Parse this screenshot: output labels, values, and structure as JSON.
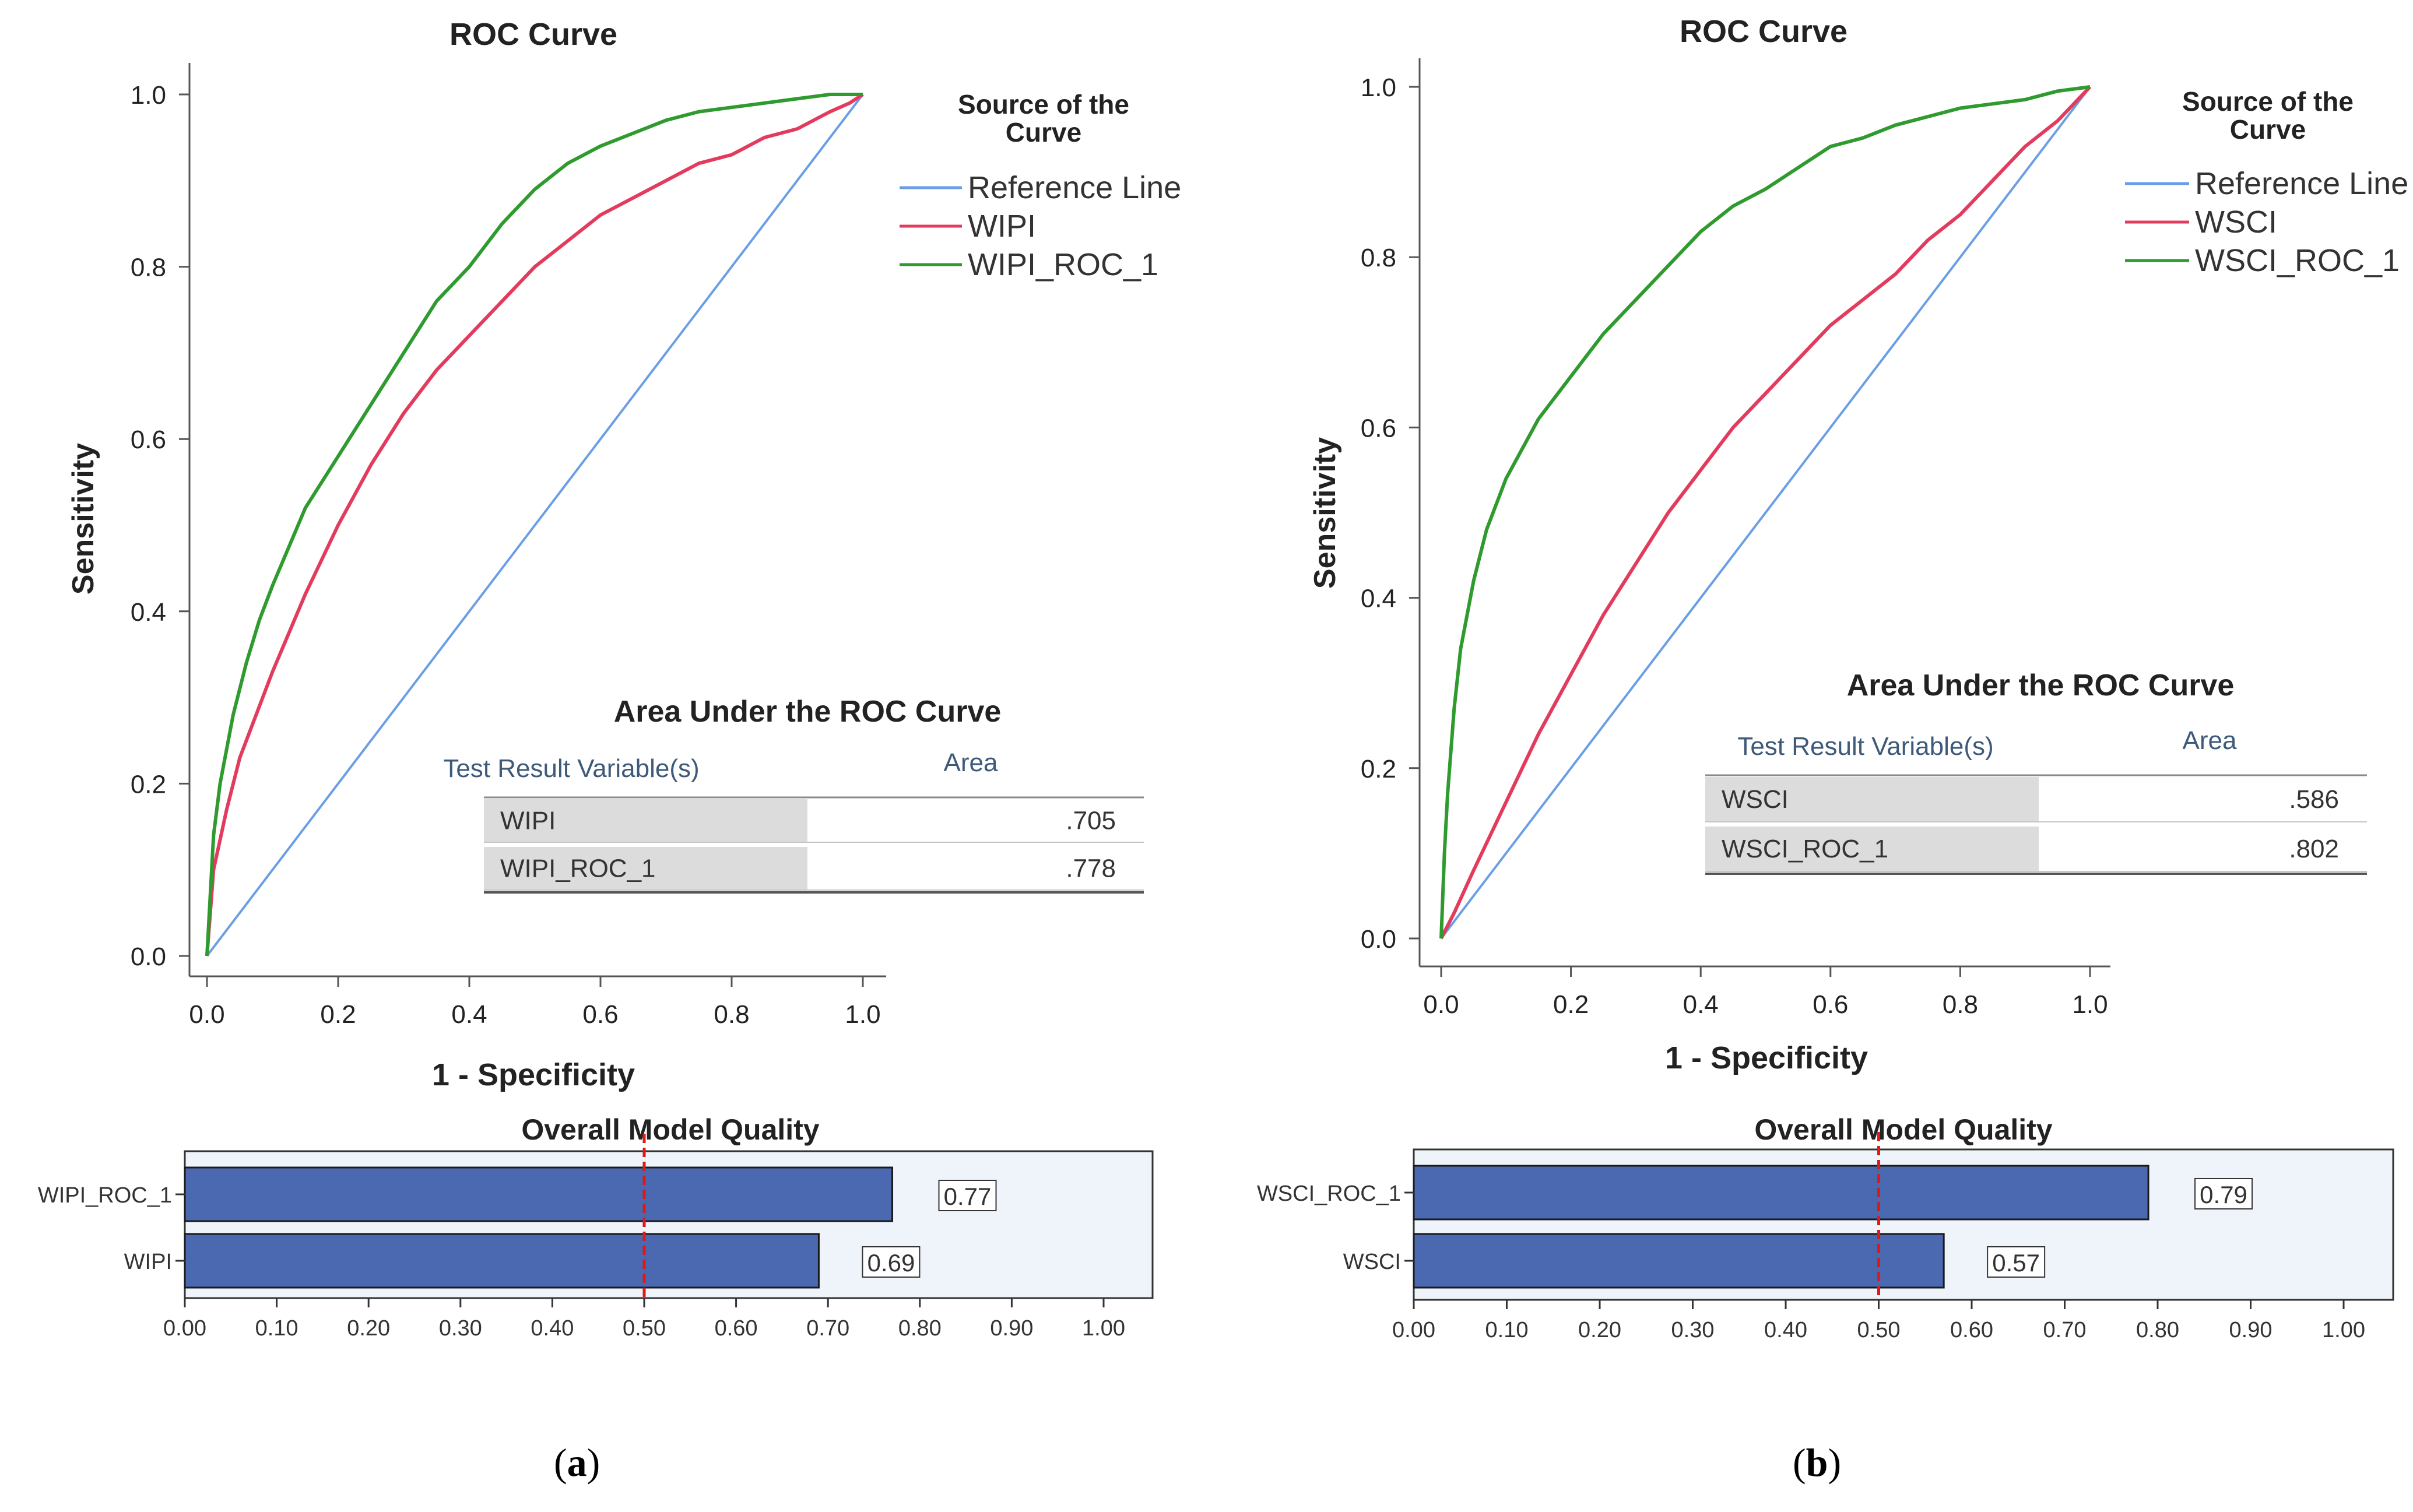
{
  "panels": [
    {
      "caption_letter": "a",
      "roc": {
        "title": "ROC Curve",
        "xlabel": "1 - Specificity",
        "ylabel": "Sensitivity",
        "ticks": [
          "0.0",
          "0.2",
          "0.4",
          "0.6",
          "0.8",
          "1.0"
        ],
        "legend_title_line1": "Source of the",
        "legend_title_line2": "Curve",
        "legend": [
          {
            "label": "Reference Line",
            "color": "#6a9fe6"
          },
          {
            "label": "WIPI",
            "color": "#e33b5d"
          },
          {
            "label": "WIPI_ROC_1",
            "color": "#2f9b2f"
          }
        ]
      },
      "auc_table": {
        "title": "Area Under the ROC Curve",
        "col_headers": [
          "Test Result Variable(s)",
          "Area"
        ],
        "rows": [
          {
            "name": "WIPI",
            "area": ".705"
          },
          {
            "name": "WIPI_ROC_1",
            "area": ".778"
          }
        ]
      },
      "quality": {
        "title": "Overall Model Quality",
        "ticks": [
          "0.00",
          "0.10",
          "0.20",
          "0.30",
          "0.40",
          "0.50",
          "0.60",
          "0.70",
          "0.80",
          "0.90",
          "1.00"
        ],
        "bars": [
          {
            "label": "WIPI_ROC_1",
            "value_label": "0.77"
          },
          {
            "label": "WIPI",
            "value_label": "0.69"
          }
        ]
      }
    },
    {
      "caption_letter": "b",
      "roc": {
        "title": "ROC Curve",
        "xlabel": "1 - Specificity",
        "ylabel": "Sensitivity",
        "ticks": [
          "0.0",
          "0.2",
          "0.4",
          "0.6",
          "0.8",
          "1.0"
        ],
        "legend_title_line1": "Source of the",
        "legend_title_line2": "Curve",
        "legend": [
          {
            "label": "Reference Line",
            "color": "#6a9fe6"
          },
          {
            "label": "WSCI",
            "color": "#e33b5d"
          },
          {
            "label": "WSCI_ROC_1",
            "color": "#2f9b2f"
          }
        ]
      },
      "auc_table": {
        "title": "Area Under the ROC Curve",
        "col_headers": [
          "Test Result Variable(s)",
          "Area"
        ],
        "rows": [
          {
            "name": "WSCI",
            "area": ".586"
          },
          {
            "name": "WSCI_ROC_1",
            "area": ".802"
          }
        ]
      },
      "quality": {
        "title": "Overall Model Quality",
        "ticks": [
          "0.00",
          "0.10",
          "0.20",
          "0.30",
          "0.40",
          "0.50",
          "0.60",
          "0.70",
          "0.80",
          "0.90",
          "1.00"
        ],
        "bars": [
          {
            "label": "WSCI_ROC_1",
            "value_label": "0.79"
          },
          {
            "label": "WSCI",
            "value_label": "0.57"
          }
        ]
      }
    }
  ],
  "chart_data": [
    {
      "type": "line",
      "title": "ROC Curve",
      "xlabel": "1 - Specificity",
      "ylabel": "Sensitivity",
      "xlim": [
        0,
        1
      ],
      "ylim": [
        0,
        1
      ],
      "series": [
        {
          "name": "Reference Line",
          "color": "#6a9fe6",
          "x": [
            0,
            1
          ],
          "y": [
            0,
            1
          ]
        },
        {
          "name": "WIPI",
          "color": "#e33b5d",
          "x": [
            0,
            0.01,
            0.03,
            0.05,
            0.08,
            0.1,
            0.15,
            0.2,
            0.25,
            0.3,
            0.35,
            0.4,
            0.45,
            0.5,
            0.55,
            0.6,
            0.65,
            0.7,
            0.75,
            0.8,
            0.85,
            0.9,
            0.95,
            0.98,
            1.0
          ],
          "y": [
            0,
            0.1,
            0.17,
            0.23,
            0.29,
            0.33,
            0.42,
            0.5,
            0.57,
            0.63,
            0.68,
            0.72,
            0.76,
            0.8,
            0.83,
            0.86,
            0.88,
            0.9,
            0.92,
            0.93,
            0.95,
            0.96,
            0.98,
            0.99,
            1.0
          ]
        },
        {
          "name": "WIPI_ROC_1",
          "color": "#2f9b2f",
          "x": [
            0,
            0.01,
            0.02,
            0.04,
            0.06,
            0.08,
            0.1,
            0.15,
            0.2,
            0.25,
            0.3,
            0.35,
            0.4,
            0.45,
            0.5,
            0.55,
            0.6,
            0.65,
            0.7,
            0.75,
            0.8,
            0.85,
            0.9,
            0.95,
            1.0
          ],
          "y": [
            0,
            0.14,
            0.2,
            0.28,
            0.34,
            0.39,
            0.43,
            0.52,
            0.58,
            0.64,
            0.7,
            0.76,
            0.8,
            0.85,
            0.89,
            0.92,
            0.94,
            0.955,
            0.97,
            0.98,
            0.985,
            0.99,
            0.995,
            1.0,
            1.0
          ]
        }
      ],
      "auc": [
        {
          "variable": "WIPI",
          "area": 0.705
        },
        {
          "variable": "WIPI_ROC_1",
          "area": 0.778
        }
      ]
    },
    {
      "type": "bar",
      "title": "Overall Model Quality",
      "orientation": "horizontal",
      "categories": [
        "WIPI_ROC_1",
        "WIPI"
      ],
      "values": [
        0.77,
        0.69
      ],
      "xlim": [
        0,
        1
      ],
      "reference_line": 0.5
    },
    {
      "type": "line",
      "title": "ROC Curve",
      "xlabel": "1 - Specificity",
      "ylabel": "Sensitivity",
      "xlim": [
        0,
        1
      ],
      "ylim": [
        0,
        1
      ],
      "series": [
        {
          "name": "Reference Line",
          "color": "#6a9fe6",
          "x": [
            0,
            1
          ],
          "y": [
            0,
            1
          ]
        },
        {
          "name": "WSCI",
          "color": "#e33b5d",
          "x": [
            0,
            0.02,
            0.05,
            0.1,
            0.15,
            0.2,
            0.25,
            0.3,
            0.35,
            0.4,
            0.45,
            0.5,
            0.55,
            0.6,
            0.65,
            0.7,
            0.75,
            0.8,
            0.85,
            0.9,
            0.95,
            1.0
          ],
          "y": [
            0,
            0.03,
            0.08,
            0.16,
            0.24,
            0.31,
            0.38,
            0.44,
            0.5,
            0.55,
            0.6,
            0.64,
            0.68,
            0.72,
            0.75,
            0.78,
            0.82,
            0.85,
            0.89,
            0.93,
            0.96,
            1.0
          ]
        },
        {
          "name": "WSCI_ROC_1",
          "color": "#2f9b2f",
          "x": [
            0,
            0.005,
            0.01,
            0.02,
            0.03,
            0.05,
            0.07,
            0.1,
            0.15,
            0.2,
            0.25,
            0.3,
            0.35,
            0.4,
            0.45,
            0.5,
            0.55,
            0.6,
            0.65,
            0.7,
            0.75,
            0.8,
            0.85,
            0.9,
            0.95,
            1.0
          ],
          "y": [
            0,
            0.1,
            0.17,
            0.27,
            0.34,
            0.42,
            0.48,
            0.54,
            0.61,
            0.66,
            0.71,
            0.75,
            0.79,
            0.83,
            0.86,
            0.88,
            0.905,
            0.93,
            0.94,
            0.955,
            0.965,
            0.975,
            0.98,
            0.985,
            0.995,
            1.0
          ]
        }
      ],
      "auc": [
        {
          "variable": "WSCI",
          "area": 0.586
        },
        {
          "variable": "WSCI_ROC_1",
          "area": 0.802
        }
      ]
    },
    {
      "type": "bar",
      "title": "Overall Model Quality",
      "orientation": "horizontal",
      "categories": [
        "WSCI_ROC_1",
        "WSCI"
      ],
      "values": [
        0.79,
        0.57
      ],
      "xlim": [
        0,
        1
      ],
      "reference_line": 0.5
    }
  ]
}
